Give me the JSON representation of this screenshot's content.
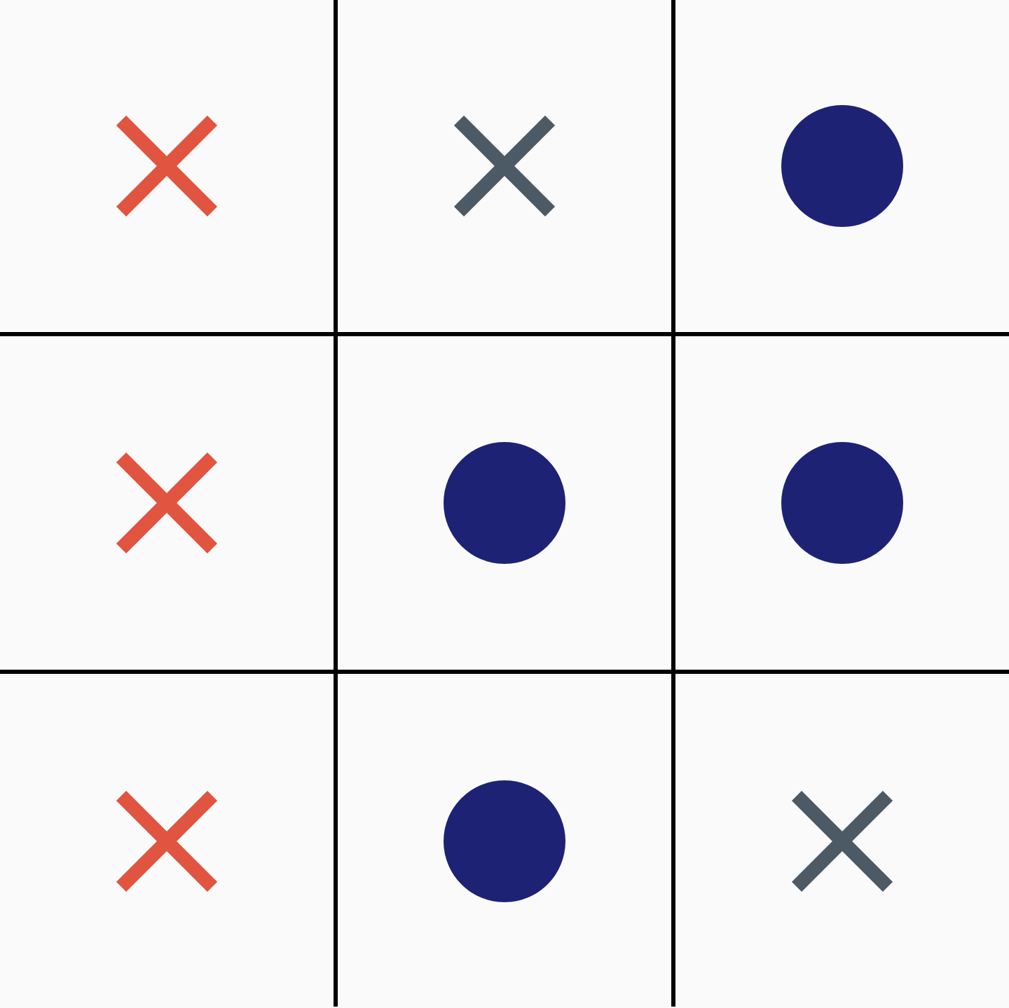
{
  "board": {
    "rows": 3,
    "cols": 3,
    "cells": [
      {
        "mark": "x",
        "color": "#e05440",
        "icon": "cross-icon"
      },
      {
        "mark": "x",
        "color": "#4b5a65",
        "icon": "cross-icon"
      },
      {
        "mark": "o",
        "color": "#1e2275",
        "icon": "dot-icon"
      },
      {
        "mark": "x",
        "color": "#e05440",
        "icon": "cross-icon"
      },
      {
        "mark": "o",
        "color": "#1e2275",
        "icon": "dot-icon"
      },
      {
        "mark": "o",
        "color": "#1e2275",
        "icon": "dot-icon"
      },
      {
        "mark": "x",
        "color": "#e05440",
        "icon": "cross-icon"
      },
      {
        "mark": "o",
        "color": "#1e2275",
        "icon": "dot-icon"
      },
      {
        "mark": "x",
        "color": "#4b5a65",
        "icon": "cross-icon"
      }
    ],
    "colors": {
      "background": "#fafafa",
      "grid": "#000000",
      "x_primary": "#e05440",
      "x_secondary": "#4b5a65",
      "o": "#1e2275"
    }
  }
}
